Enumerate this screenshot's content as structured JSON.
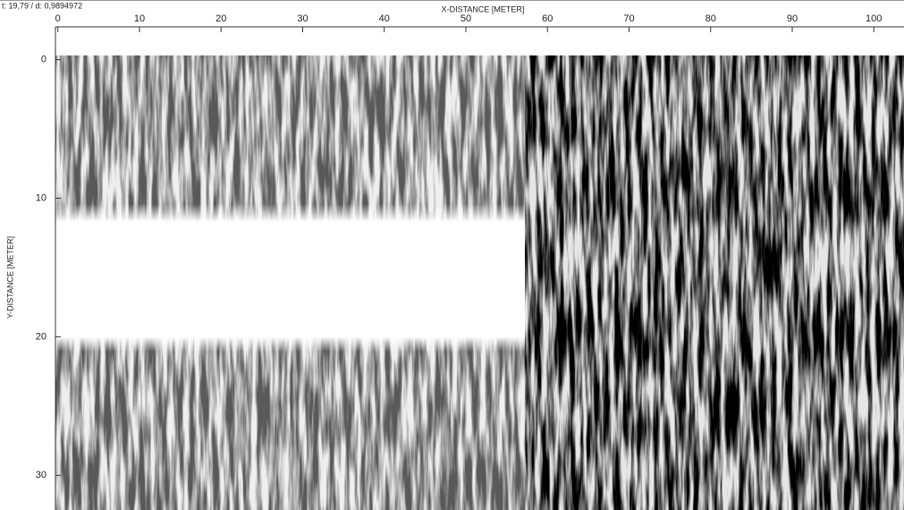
{
  "chart_data": {
    "type": "heatmap",
    "status": "t: 19,79 / d: 0,9894972",
    "x_label": "X-DISTANCE [METER]",
    "y_label": "Y-DISTANCE [METER]",
    "xlim": [
      -0.3,
      103.7
    ],
    "xticks": [
      0,
      10,
      20,
      30,
      40,
      50,
      60,
      70,
      80,
      90,
      100
    ],
    "ylim": [
      -0.3,
      32.5
    ],
    "yticks": [
      0,
      10,
      20,
      30
    ]
  }
}
